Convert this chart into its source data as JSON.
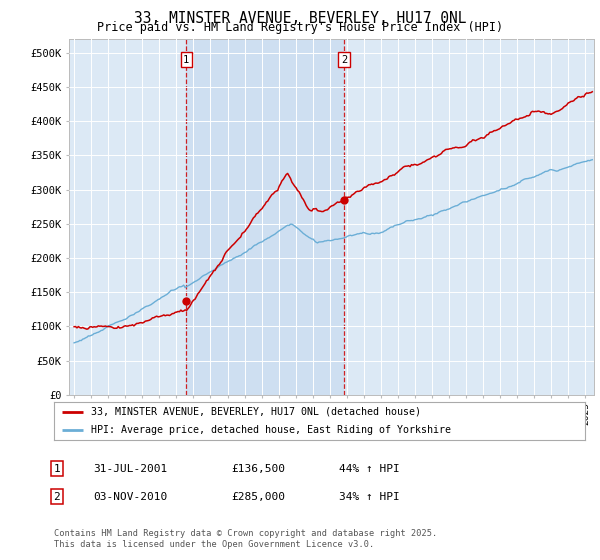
{
  "title_line1": "33, MINSTER AVENUE, BEVERLEY, HU17 0NL",
  "title_line2": "Price paid vs. HM Land Registry's House Price Index (HPI)",
  "ylabel_ticks": [
    "£0",
    "£50K",
    "£100K",
    "£150K",
    "£200K",
    "£250K",
    "£300K",
    "£350K",
    "£400K",
    "£450K",
    "£500K"
  ],
  "ytick_values": [
    0,
    50000,
    100000,
    150000,
    200000,
    250000,
    300000,
    350000,
    400000,
    450000,
    500000
  ],
  "xlim_start": 1994.7,
  "xlim_end": 2025.5,
  "ylim": [
    0,
    520000
  ],
  "purchase1_x": 2001.58,
  "purchase1_y": 136500,
  "purchase2_x": 2010.84,
  "purchase2_y": 285000,
  "legend_line1": "33, MINSTER AVENUE, BEVERLEY, HU17 0NL (detached house)",
  "legend_line2": "HPI: Average price, detached house, East Riding of Yorkshire",
  "footnote": "Contains HM Land Registry data © Crown copyright and database right 2025.\nThis data is licensed under the Open Government Licence v3.0.",
  "hpi_color": "#6baed6",
  "price_color": "#cc0000",
  "vline_color": "#cc0000",
  "shade_color": "#c6d9ef",
  "bg_color": "#dce9f5",
  "plot_bg": "#ffffff",
  "grid_color": "#ffffff"
}
